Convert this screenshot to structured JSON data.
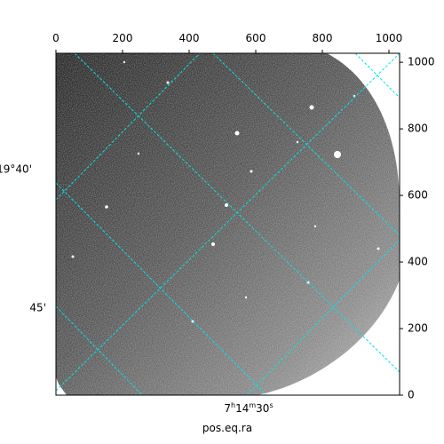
{
  "chart_data": {
    "type": "image",
    "xlabel": "pos.eq.ra",
    "xlim": [
      0,
      1032
    ],
    "ylim": [
      0,
      1027
    ],
    "xticks": [
      0,
      200,
      400,
      600,
      800,
      1000
    ],
    "yticks": [
      0,
      200,
      400,
      600,
      800,
      1000
    ],
    "ra_ticks": [
      [
        "7",
        "h",
        "14",
        "m",
        "30",
        "s"
      ]
    ],
    "dec_ticks": [
      "19°40'",
      "45'"
    ]
  }
}
